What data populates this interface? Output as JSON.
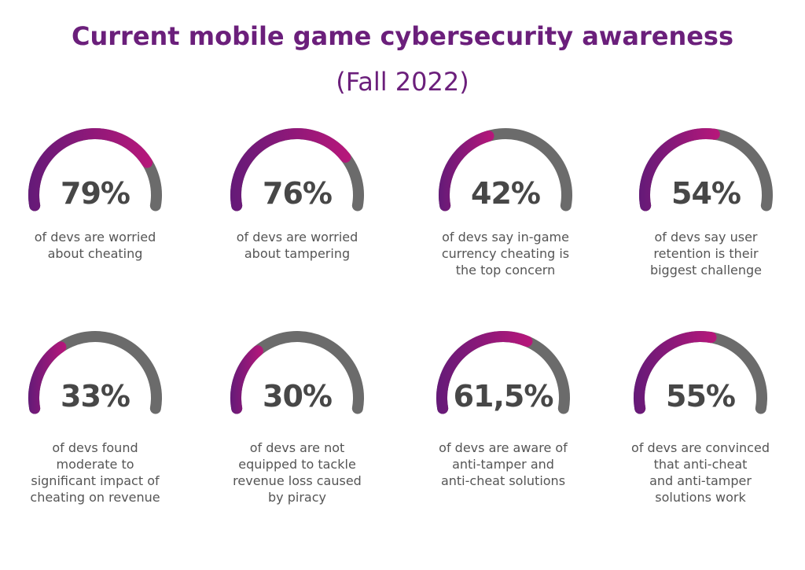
{
  "header": {
    "title": "Current mobile game cybersecurity awareness",
    "subtitle": "(Fall 2022)"
  },
  "colors": {
    "title": "#6b1f7b",
    "arc_start": "#641a78",
    "arc_end": "#b8177a",
    "arc_track": "#6b6b6b",
    "value_text": "#474747",
    "caption_text": "#555555"
  },
  "gauges": [
    {
      "value": "79%",
      "percent": 79,
      "caption": [
        "of devs are worried",
        "about cheating"
      ]
    },
    {
      "value": "76%",
      "percent": 76,
      "caption": [
        "of devs are worried",
        "about tampering"
      ]
    },
    {
      "value": "42%",
      "percent": 42,
      "caption": [
        "of devs say in-game",
        "currency cheating is",
        "the top concern"
      ]
    },
    {
      "value": "54%",
      "percent": 54,
      "caption": [
        "of devs say user",
        "retention is their",
        "biggest challenge"
      ]
    },
    {
      "value": "33%",
      "percent": 33,
      "caption": [
        "of devs found",
        "moderate to",
        "significant impact of",
        "cheating on revenue"
      ]
    },
    {
      "value": "30%",
      "percent": 30,
      "caption": [
        "of devs are not",
        "equipped to tackle",
        "revenue loss caused",
        "by piracy"
      ]
    },
    {
      "value": "61,5%",
      "percent": 61.5,
      "caption": [
        "of devs are aware of",
        "anti-tamper and",
        "anti-cheat solutions"
      ]
    },
    {
      "value": "55%",
      "percent": 55,
      "caption": [
        "of devs are convinced",
        "that anti-cheat",
        "and anti-tamper",
        "solutions work"
      ]
    }
  ],
  "chart_data": {
    "type": "gauge",
    "title": "Current mobile game cybersecurity awareness",
    "subtitle": "(Fall 2022)",
    "categories": [
      "of devs are worried about cheating",
      "of devs are worried about tampering",
      "of devs say in-game currency cheating is the top concern",
      "of devs say user retention is their biggest challenge",
      "of devs found moderate to significant impact of cheating on revenue",
      "of devs are not equipped to tackle revenue loss caused by piracy",
      "of devs are aware of anti-tamper and anti-cheat solutions",
      "of devs are convinced that anti-cheat and anti-tamper solutions work"
    ],
    "values": [
      79,
      76,
      42,
      54,
      33,
      30,
      61.5,
      55
    ],
    "unit": "%",
    "ylim": [
      0,
      100
    ],
    "layout": "2 rows x 4 columns of semicircular gauges",
    "legend": null,
    "grid": false
  }
}
